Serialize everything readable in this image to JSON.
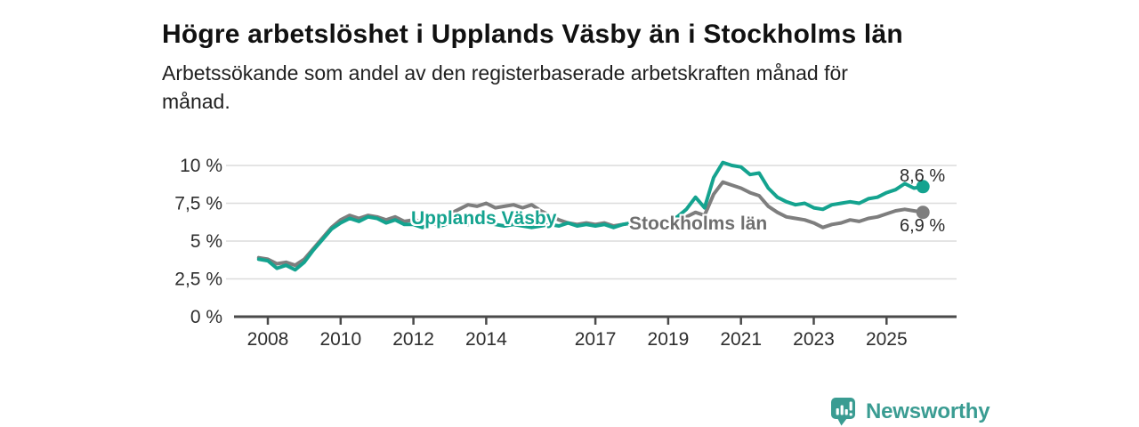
{
  "header": {
    "title": "Högre arbetslöshet i Upplands Väsby än i Stockholms län",
    "subtitle_line1": "Arbetssökande som andel av den registerbaserade arbetskraften månad för",
    "subtitle_line2": "månad."
  },
  "chart_data": {
    "type": "line",
    "title": "Högre arbetslöshet i Upplands Väsby än i Stockholms län",
    "subtitle": "Arbetssökande som andel av den registerbaserade arbetskraften månad för månad.",
    "xlabel": "",
    "ylabel": "",
    "grid": true,
    "legend_position": "inline-on-lines",
    "ylim": [
      0,
      10.7
    ],
    "x_start": 2007.75,
    "x_step": 0.25,
    "x_ticks": [
      2008,
      2010,
      2012,
      2014,
      2017,
      2019,
      2021,
      2023,
      2025
    ],
    "y_ticks": [
      {
        "value": 0,
        "label": "0 %"
      },
      {
        "value": 2.5,
        "label": "2,5 %"
      },
      {
        "value": 5,
        "label": "5 %"
      },
      {
        "value": 7.5,
        "label": "7,5 %"
      },
      {
        "value": 10,
        "label": "10 %"
      }
    ],
    "series": [
      {
        "name": "Upplands Väsby",
        "color": "#14a38f",
        "label_color": "#14a38f",
        "end_label": "8,6 %",
        "end_value": 8.6,
        "values": [
          3.8,
          3.7,
          3.2,
          3.4,
          3.1,
          3.6,
          4.4,
          5.1,
          5.8,
          6.2,
          6.5,
          6.3,
          6.6,
          6.5,
          6.2,
          6.4,
          6.1,
          6.1,
          5.9,
          6.2,
          6.0,
          6.2,
          6.3,
          6.1,
          6.2,
          6.3,
          6.1,
          6.0,
          6.1,
          6.0,
          5.9,
          6.0,
          6.1,
          6.0,
          6.2,
          6.0,
          6.1,
          6.0,
          6.1,
          5.9,
          6.1,
          6.2,
          6.0,
          6.2,
          6.3,
          6.3,
          6.6,
          7.1,
          7.9,
          7.2,
          9.2,
          10.2,
          10.0,
          9.9,
          9.4,
          9.5,
          8.5,
          7.9,
          7.6,
          7.4,
          7.5,
          7.2,
          7.1,
          7.4,
          7.5,
          7.6,
          7.5,
          7.8,
          7.9,
          8.2,
          8.4,
          8.8,
          8.5,
          8.6
        ]
      },
      {
        "name": "Stockholms län",
        "color": "#7e7e7e",
        "label_color": "#6f6f6f",
        "end_label": "6,9 %",
        "end_value": 6.9,
        "values": [
          3.9,
          3.8,
          3.5,
          3.6,
          3.4,
          3.8,
          4.5,
          5.2,
          5.9,
          6.4,
          6.7,
          6.5,
          6.7,
          6.6,
          6.4,
          6.6,
          6.3,
          6.4,
          6.3,
          6.5,
          6.6,
          6.8,
          7.1,
          7.4,
          7.3,
          7.5,
          7.2,
          7.3,
          7.4,
          7.2,
          7.4,
          7.0,
          6.7,
          6.4,
          6.2,
          6.1,
          6.2,
          6.1,
          6.2,
          6.0,
          6.1,
          6.2,
          6.1,
          6.2,
          6.3,
          6.3,
          6.4,
          6.6,
          6.9,
          6.7,
          8.1,
          8.9,
          8.7,
          8.5,
          8.2,
          8.0,
          7.3,
          6.9,
          6.6,
          6.5,
          6.4,
          6.2,
          5.9,
          6.1,
          6.2,
          6.4,
          6.3,
          6.5,
          6.6,
          6.8,
          7.0,
          7.1,
          7.0,
          6.9
        ]
      }
    ]
  },
  "branding": {
    "name": "Newsworthy",
    "color": "#3a9c92",
    "icon": "bar-chart-bubble-icon"
  }
}
